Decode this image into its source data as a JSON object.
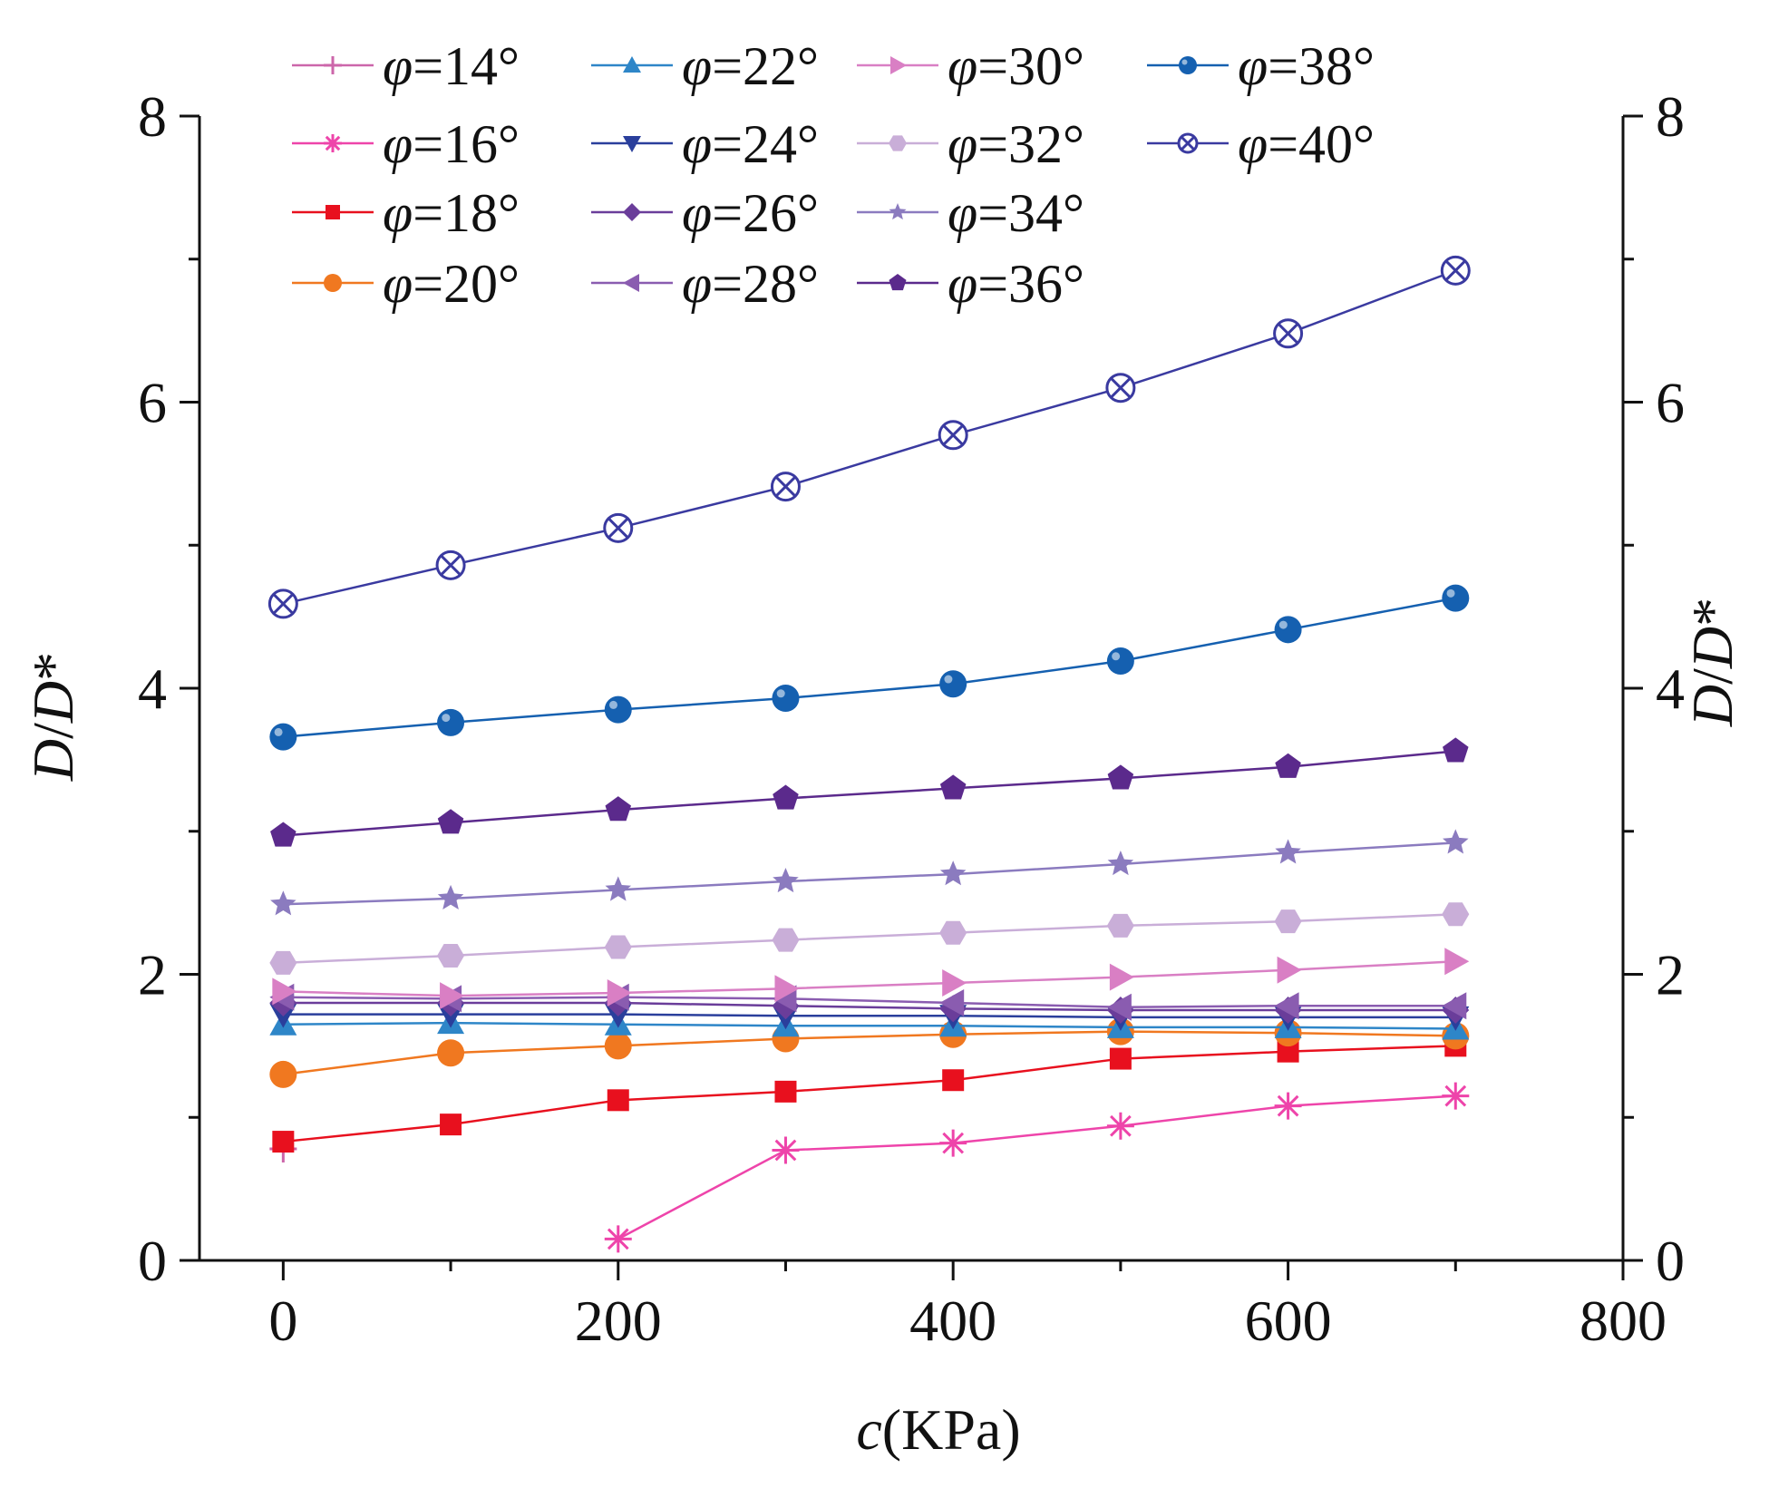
{
  "chart_data": {
    "type": "line",
    "xlabel_italic": "c",
    "xlabel_rest": "(KPa)",
    "ylabel_left": [
      "D",
      "/",
      "D",
      "*"
    ],
    "ylabel_right": [
      "D",
      "/",
      "D",
      "*"
    ],
    "xlim": [
      -50,
      800
    ],
    "ylim": [
      0,
      8
    ],
    "x_ticks": [
      0,
      200,
      400,
      600,
      800
    ],
    "y_ticks": [
      0,
      2,
      4,
      6,
      8
    ],
    "x_tick_labels": [
      "0",
      "200",
      "400",
      "600",
      "800"
    ],
    "y_tick_labels": [
      "0",
      "2",
      "4",
      "6",
      "8"
    ],
    "legend_placement": "top-left",
    "legend_symbol": "φ",
    "series": [
      {
        "name": "=14°",
        "color": "#cc66aa",
        "marker": "plus",
        "x": [
          0
        ],
        "values": [
          0.78
        ]
      },
      {
        "name": "=16°",
        "color": "#ee44aa",
        "marker": "asterisk",
        "x": [
          200,
          300,
          400,
          500,
          600,
          700
        ],
        "values": [
          0.15,
          0.77,
          0.82,
          0.94,
          1.08,
          1.15
        ]
      },
      {
        "name": "=18°",
        "color": "#e8101e",
        "marker": "square",
        "x": [
          0,
          100,
          200,
          300,
          400,
          500,
          600,
          700
        ],
        "values": [
          0.83,
          0.95,
          1.12,
          1.18,
          1.26,
          1.41,
          1.46,
          1.5
        ]
      },
      {
        "name": "=20°",
        "color": "#f07820",
        "marker": "circle",
        "x": [
          0,
          100,
          200,
          300,
          400,
          500,
          600,
          700
        ],
        "values": [
          1.3,
          1.45,
          1.5,
          1.55,
          1.58,
          1.6,
          1.59,
          1.57
        ]
      },
      {
        "name": "=22°",
        "color": "#2e86c8",
        "marker": "triangle-up",
        "x": [
          0,
          100,
          200,
          300,
          400,
          500,
          600,
          700
        ],
        "values": [
          1.65,
          1.66,
          1.65,
          1.64,
          1.64,
          1.63,
          1.63,
          1.62
        ]
      },
      {
        "name": "=24°",
        "color": "#2a3f9c",
        "marker": "triangle-down",
        "x": [
          0,
          100,
          200,
          300,
          400,
          500,
          600,
          700
        ],
        "values": [
          1.72,
          1.72,
          1.72,
          1.71,
          1.71,
          1.7,
          1.7,
          1.7
        ]
      },
      {
        "name": "=26°",
        "color": "#6a3d9a",
        "marker": "diamond",
        "x": [
          0,
          100,
          200,
          300,
          400,
          500,
          600,
          700
        ],
        "values": [
          1.8,
          1.8,
          1.8,
          1.78,
          1.76,
          1.75,
          1.75,
          1.75
        ]
      },
      {
        "name": "=28°",
        "color": "#8a5cb0",
        "marker": "triangle-left",
        "x": [
          0,
          100,
          200,
          300,
          400,
          500,
          600,
          700
        ],
        "values": [
          1.84,
          1.83,
          1.84,
          1.83,
          1.8,
          1.77,
          1.78,
          1.78
        ]
      },
      {
        "name": "=30°",
        "color": "#d97fc4",
        "marker": "triangle-right",
        "x": [
          0,
          100,
          200,
          300,
          400,
          500,
          600,
          700
        ],
        "values": [
          1.88,
          1.85,
          1.87,
          1.9,
          1.94,
          1.98,
          2.03,
          2.09
        ]
      },
      {
        "name": "=32°",
        "color": "#c9aed8",
        "marker": "hexagon",
        "x": [
          0,
          100,
          200,
          300,
          400,
          500,
          600,
          700
        ],
        "values": [
          2.08,
          2.13,
          2.19,
          2.24,
          2.29,
          2.34,
          2.37,
          2.42
        ]
      },
      {
        "name": "=34°",
        "color": "#8b7bbf",
        "marker": "star",
        "x": [
          0,
          100,
          200,
          300,
          400,
          500,
          600,
          700
        ],
        "values": [
          2.49,
          2.53,
          2.59,
          2.65,
          2.7,
          2.77,
          2.85,
          2.92
        ]
      },
      {
        "name": "=36°",
        "color": "#5b2a8c",
        "marker": "pentagon",
        "x": [
          0,
          100,
          200,
          300,
          400,
          500,
          600,
          700
        ],
        "values": [
          2.97,
          3.06,
          3.15,
          3.23,
          3.3,
          3.37,
          3.45,
          3.56
        ]
      },
      {
        "name": "=38°",
        "color": "#1560b0",
        "marker": "ball",
        "x": [
          0,
          100,
          200,
          300,
          400,
          500,
          600,
          700
        ],
        "values": [
          3.66,
          3.76,
          3.85,
          3.93,
          4.03,
          4.19,
          4.41,
          4.63
        ]
      },
      {
        "name": "=40°",
        "color": "#3a3aa0",
        "marker": "circle-x",
        "x": [
          0,
          100,
          200,
          300,
          400,
          500,
          600,
          700
        ],
        "values": [
          4.59,
          4.86,
          5.12,
          5.41,
          5.77,
          6.1,
          6.48,
          6.92
        ]
      }
    ]
  }
}
